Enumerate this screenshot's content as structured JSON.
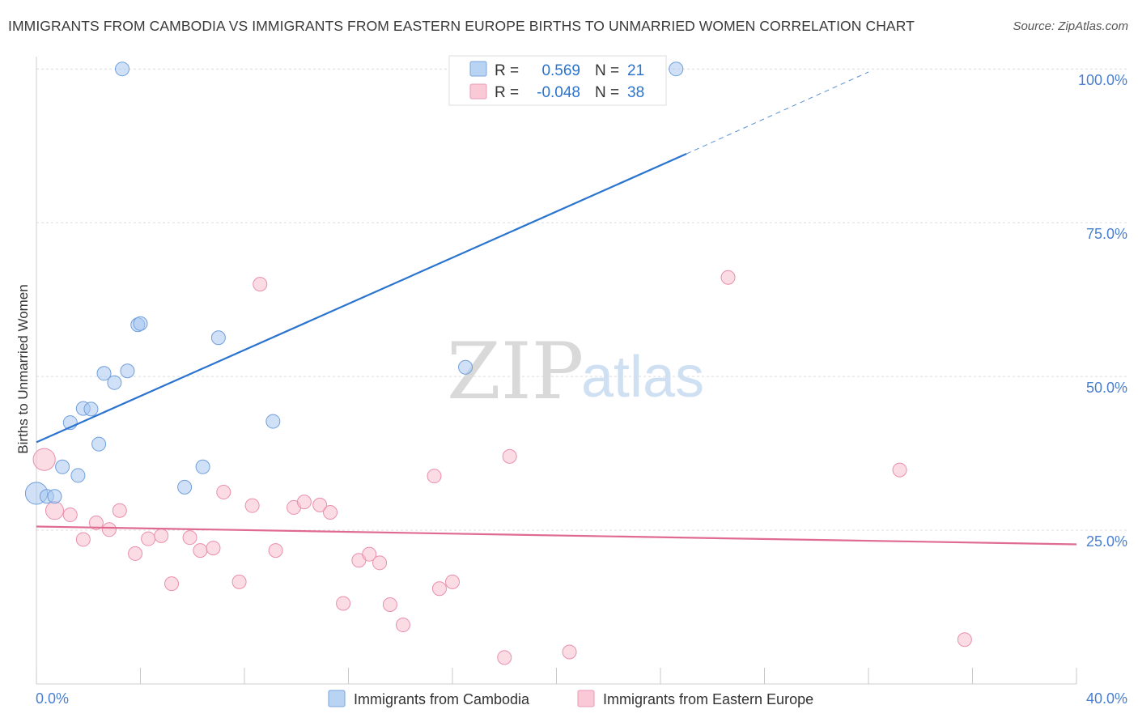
{
  "header": {
    "title": "IMMIGRANTS FROM CAMBODIA VS IMMIGRANTS FROM EASTERN EUROPE BIRTHS TO UNMARRIED WOMEN CORRELATION CHART",
    "source": "Source: ZipAtlas.com"
  },
  "watermark": {
    "zip": "ZIP",
    "atlas": "atlas"
  },
  "legend": {
    "r_label": "R =",
    "n_label": "N =",
    "rows": [
      {
        "r": "0.569",
        "n": "21"
      },
      {
        "r": "-0.048",
        "n": "38"
      }
    ]
  },
  "colors": {
    "cambodia_fill": "#a9c8f0",
    "cambodia_stroke": "#6f9fdc",
    "cambodia_line": "#2a74cf",
    "europe_fill": "#f7bfd0",
    "europe_stroke": "#e98fad",
    "europe_line": "#e06b92",
    "tick_text": "#4a7fd0"
  },
  "chart_data": {
    "type": "scatter",
    "title": "IMMIGRANTS FROM CAMBODIA VS IMMIGRANTS FROM EASTERN EUROPE BIRTHS TO UNMARRIED WOMEN CORRELATION CHART",
    "xlabel": "",
    "ylabel": "Births to Unmarried Women",
    "xlim": [
      0,
      40
    ],
    "ylim": [
      0,
      102
    ],
    "x_tick_labels": [
      "0.0%",
      "40.0%"
    ],
    "y_ticks": [
      25,
      50,
      75,
      100
    ],
    "y_tick_labels": [
      "25.0%",
      "50.0%",
      "75.0%",
      "100.0%"
    ],
    "series": [
      {
        "name": "Immigrants from Cambodia",
        "r": 0.569,
        "n": 21,
        "points": [
          {
            "x": 0.0,
            "y": 31.0,
            "s": 1.6
          },
          {
            "x": 0.4,
            "y": 30.5,
            "s": 1
          },
          {
            "x": 0.7,
            "y": 30.5,
            "s": 1
          },
          {
            "x": 1.0,
            "y": 35.3,
            "s": 1
          },
          {
            "x": 1.3,
            "y": 42.5,
            "s": 1
          },
          {
            "x": 1.6,
            "y": 33.9,
            "s": 1
          },
          {
            "x": 1.8,
            "y": 44.8,
            "s": 1
          },
          {
            "x": 2.1,
            "y": 44.7,
            "s": 1
          },
          {
            "x": 2.4,
            "y": 39.0,
            "s": 1
          },
          {
            "x": 2.6,
            "y": 50.5,
            "s": 1
          },
          {
            "x": 3.0,
            "y": 49.0,
            "s": 1
          },
          {
            "x": 3.3,
            "y": 100.0,
            "s": 1
          },
          {
            "x": 3.5,
            "y": 50.9,
            "s": 1
          },
          {
            "x": 3.9,
            "y": 58.4,
            "s": 1
          },
          {
            "x": 4.0,
            "y": 58.6,
            "s": 1
          },
          {
            "x": 5.7,
            "y": 32.0,
            "s": 1
          },
          {
            "x": 6.4,
            "y": 35.3,
            "s": 1
          },
          {
            "x": 7.0,
            "y": 56.3,
            "s": 1
          },
          {
            "x": 9.1,
            "y": 42.7,
            "s": 1
          },
          {
            "x": 16.5,
            "y": 51.5,
            "s": 1
          },
          {
            "x": 24.6,
            "y": 100.0,
            "s": 1
          }
        ],
        "trend": {
          "x0": 0,
          "y0": 39.3,
          "x1": 25,
          "y1": 86.2,
          "dash_x1": 32.0,
          "dash_y1": 99.5
        }
      },
      {
        "name": "Immigrants from Eastern Europe",
        "r": -0.048,
        "n": 38,
        "points": [
          {
            "x": 0.3,
            "y": 36.5,
            "s": 1.6
          },
          {
            "x": 0.7,
            "y": 28.2,
            "s": 1.3
          },
          {
            "x": 1.3,
            "y": 27.5,
            "s": 1
          },
          {
            "x": 1.8,
            "y": 23.5,
            "s": 1
          },
          {
            "x": 2.3,
            "y": 26.2,
            "s": 1
          },
          {
            "x": 2.8,
            "y": 25.1,
            "s": 1
          },
          {
            "x": 3.2,
            "y": 28.2,
            "s": 1
          },
          {
            "x": 3.8,
            "y": 21.2,
            "s": 1
          },
          {
            "x": 4.3,
            "y": 23.6,
            "s": 1
          },
          {
            "x": 4.8,
            "y": 24.1,
            "s": 1
          },
          {
            "x": 5.2,
            "y": 16.3,
            "s": 1
          },
          {
            "x": 5.9,
            "y": 23.8,
            "s": 1
          },
          {
            "x": 6.3,
            "y": 21.7,
            "s": 1
          },
          {
            "x": 6.8,
            "y": 22.1,
            "s": 1
          },
          {
            "x": 7.2,
            "y": 31.2,
            "s": 1
          },
          {
            "x": 7.8,
            "y": 16.6,
            "s": 1
          },
          {
            "x": 8.3,
            "y": 29.0,
            "s": 1
          },
          {
            "x": 8.6,
            "y": 65.0,
            "s": 1
          },
          {
            "x": 9.2,
            "y": 21.7,
            "s": 1
          },
          {
            "x": 9.9,
            "y": 28.7,
            "s": 1
          },
          {
            "x": 10.3,
            "y": 29.6,
            "s": 1
          },
          {
            "x": 10.9,
            "y": 29.1,
            "s": 1
          },
          {
            "x": 11.3,
            "y": 27.9,
            "s": 1
          },
          {
            "x": 11.8,
            "y": 13.1,
            "s": 1
          },
          {
            "x": 12.4,
            "y": 20.1,
            "s": 1
          },
          {
            "x": 12.8,
            "y": 21.1,
            "s": 1
          },
          {
            "x": 13.2,
            "y": 19.7,
            "s": 1
          },
          {
            "x": 13.6,
            "y": 12.9,
            "s": 1
          },
          {
            "x": 14.1,
            "y": 9.6,
            "s": 1
          },
          {
            "x": 15.3,
            "y": 33.8,
            "s": 1
          },
          {
            "x": 15.5,
            "y": 15.5,
            "s": 1
          },
          {
            "x": 16.0,
            "y": 16.6,
            "s": 1
          },
          {
            "x": 18.0,
            "y": 4.3,
            "s": 1
          },
          {
            "x": 18.2,
            "y": 37.0,
            "s": 1
          },
          {
            "x": 20.5,
            "y": 5.2,
            "s": 1
          },
          {
            "x": 26.6,
            "y": 66.1,
            "s": 1
          },
          {
            "x": 33.2,
            "y": 34.8,
            "s": 1
          },
          {
            "x": 35.7,
            "y": 7.2,
            "s": 1
          }
        ],
        "trend": {
          "x0": 0,
          "y0": 25.6,
          "x1": 40,
          "y1": 22.7
        }
      }
    ]
  }
}
